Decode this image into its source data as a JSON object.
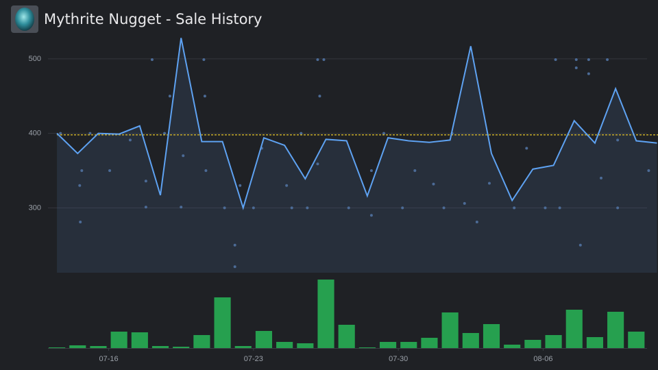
{
  "chart_data": [
    {
      "type": "line",
      "title": "Mythrite Nugget - Sale History",
      "xlim": [
        13.1,
        42.55
      ],
      "ylim": [
        213,
        533
      ],
      "yticks": [
        300,
        400,
        500
      ],
      "grid": true,
      "reference_line": {
        "value": 398,
        "color": "#d4b62a"
      },
      "line": {
        "color": "#5ea2f2",
        "x": [
          13.5,
          14.5,
          15.5,
          16.5,
          17.5,
          18.5,
          19.5,
          20.5,
          21.5,
          22.5,
          23.5,
          24.5,
          25.5,
          26.5,
          27.5,
          28.5,
          29.5,
          30.5,
          31.5,
          32.5,
          33.5,
          34.5,
          35.5,
          36.5,
          37.5,
          38.5,
          39.5,
          40.5,
          41.5,
          42.5
        ],
        "values": [
          400,
          373,
          400,
          399,
          410,
          317,
          528,
          389,
          389,
          300,
          394,
          384,
          339,
          392,
          390,
          316,
          394,
          390,
          388,
          391,
          517,
          373,
          310,
          352,
          357,
          417,
          387,
          460,
          390,
          387
        ]
      },
      "scatter": {
        "color": "#4c6b96",
        "x": [
          13.67,
          14.6,
          14.63,
          14.7,
          15.1,
          16.05,
          17.04,
          17.8,
          17.8,
          18.1,
          18.7,
          18.96,
          19.5,
          19.6,
          20.6,
          20.65,
          20.7,
          21.6,
          22.1,
          22.1,
          22.35,
          23.0,
          23.4,
          24.6,
          24.85,
          25.3,
          25.6,
          26.1,
          26.2,
          26.4,
          26.1,
          27.6,
          28.7,
          28.7,
          29.3,
          30.2,
          30.8,
          31.7,
          32.2,
          32.6,
          33.2,
          33.8,
          34.4,
          35.6,
          36.2,
          37.1,
          37.6,
          37.8,
          38.6,
          38.6,
          38.8,
          39.2,
          39.2,
          39.8,
          40.1,
          40.6,
          40.6,
          42.1
        ],
        "values": [
          400,
          330,
          281,
          350,
          400,
          350,
          391,
          336,
          301,
          499,
          400,
          450,
          301,
          370,
          499,
          450,
          350,
          300,
          250,
          221,
          330,
          300,
          380,
          330,
          300,
          400,
          300,
          499,
          450,
          499,
          359,
          300,
          290,
          350,
          400,
          300,
          350,
          332,
          300,
          400,
          306,
          281,
          333,
          300,
          380,
          300,
          499,
          300,
          499,
          488,
          250,
          480,
          499,
          340,
          499,
          300,
          391,
          350
        ]
      }
    },
    {
      "type": "bar",
      "color": "#26a04f",
      "xlim": [
        13.1,
        42.55
      ],
      "ylim": [
        0,
        100
      ],
      "xticks": [
        {
          "value": 16,
          "label": "07-16"
        },
        {
          "value": 23,
          "label": "07-23"
        },
        {
          "value": 30,
          "label": "07-30"
        },
        {
          "value": 37,
          "label": "08-06"
        }
      ],
      "x": [
        13.5,
        14.5,
        15.5,
        16.5,
        17.5,
        18.5,
        19.5,
        20.5,
        21.5,
        22.5,
        23.5,
        24.5,
        25.5,
        26.5,
        27.5,
        28.5,
        29.5,
        30.5,
        31.5,
        32.5,
        33.5,
        34.5,
        35.5,
        36.5,
        37.5,
        38.5,
        39.5,
        40.5,
        41.5
      ],
      "values": [
        1,
        4,
        3,
        24,
        23,
        3,
        2,
        19,
        74,
        3,
        25,
        9,
        7,
        100,
        34,
        1,
        9,
        9,
        15,
        52,
        22,
        35,
        5,
        12,
        19,
        56,
        16,
        53,
        24
      ]
    }
  ]
}
